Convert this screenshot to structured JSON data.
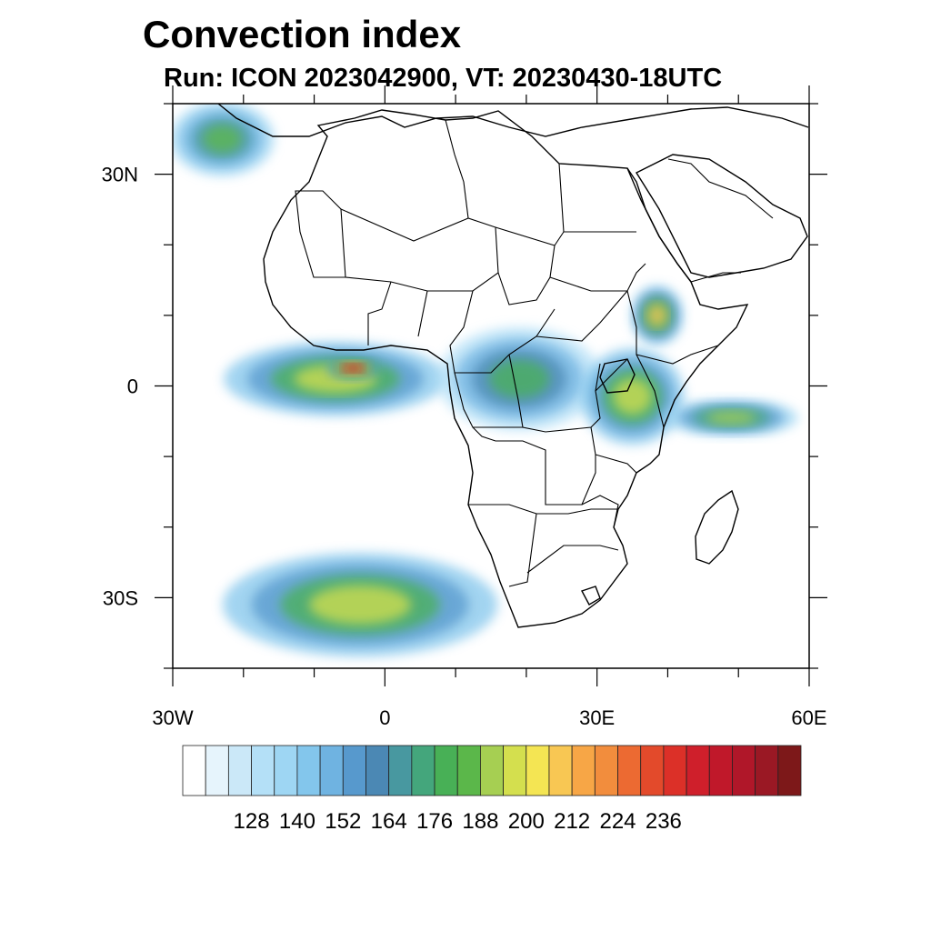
{
  "header": {
    "title": "Convection index",
    "subtitle": "Run: ICON 2023042900,  VT: 20230430-18UTC"
  },
  "map": {
    "lon_range": [
      -30,
      60
    ],
    "lat_range": [
      -40,
      40
    ],
    "lon_ticks": [
      {
        "value": -30,
        "label": "30W"
      },
      {
        "value": 0,
        "label": "0"
      },
      {
        "value": 30,
        "label": "30E"
      },
      {
        "value": 60,
        "label": "60E"
      }
    ],
    "lat_ticks": [
      {
        "value": 30,
        "label": "30N"
      },
      {
        "value": 0,
        "label": "0"
      },
      {
        "value": -30,
        "label": "30S"
      }
    ],
    "field_regions": [
      {
        "name": "gulf-of-guinea-band",
        "lon": [
          -22,
          8
        ],
        "lat": [
          -4,
          6
        ],
        "level": 0.5
      },
      {
        "name": "gulf-of-guinea-core",
        "lon": [
          -8,
          -1
        ],
        "lat": [
          1,
          4
        ],
        "level": 0.85
      },
      {
        "name": "congo-basin",
        "lon": [
          8,
          30
        ],
        "lat": [
          -6,
          8
        ],
        "level": 0.35
      },
      {
        "name": "east-africa-lakes",
        "lon": [
          28,
          42
        ],
        "lat": [
          -8,
          5
        ],
        "level": 0.5
      },
      {
        "name": "ethiopian-highlands",
        "lon": [
          35,
          42
        ],
        "lat": [
          6,
          14
        ],
        "level": 0.55
      },
      {
        "name": "indian-ocean-band",
        "lon": [
          40,
          58
        ],
        "lat": [
          -7,
          -2
        ],
        "level": 0.45
      },
      {
        "name": "southern-ocean-band",
        "lon": [
          -22,
          15
        ],
        "lat": [
          -38,
          -24
        ],
        "level": 0.5
      },
      {
        "name": "north-atlantic-band",
        "lon": [
          -30,
          -16
        ],
        "lat": [
          30,
          40
        ],
        "level": 0.4
      }
    ]
  },
  "colorbar": {
    "colors": [
      "#ffffff",
      "#e6f4fc",
      "#cbe8f8",
      "#b4e0f7",
      "#9ed6f3",
      "#83c6ec",
      "#6fb3e1",
      "#5799cd",
      "#4b88b4",
      "#4898a0",
      "#44a67c",
      "#48b056",
      "#5bb74a",
      "#a6cf52",
      "#d4df4e",
      "#f4e553",
      "#f8c753",
      "#f7a646",
      "#f28d3d",
      "#ec6a32",
      "#e34a2b",
      "#dc3028",
      "#cf1f2b",
      "#c0182a",
      "#b01729",
      "#9a1824",
      "#7d1819"
    ],
    "labels": [
      "128",
      "140",
      "152",
      "164",
      "176",
      "188",
      "200",
      "212",
      "224",
      "236"
    ]
  }
}
